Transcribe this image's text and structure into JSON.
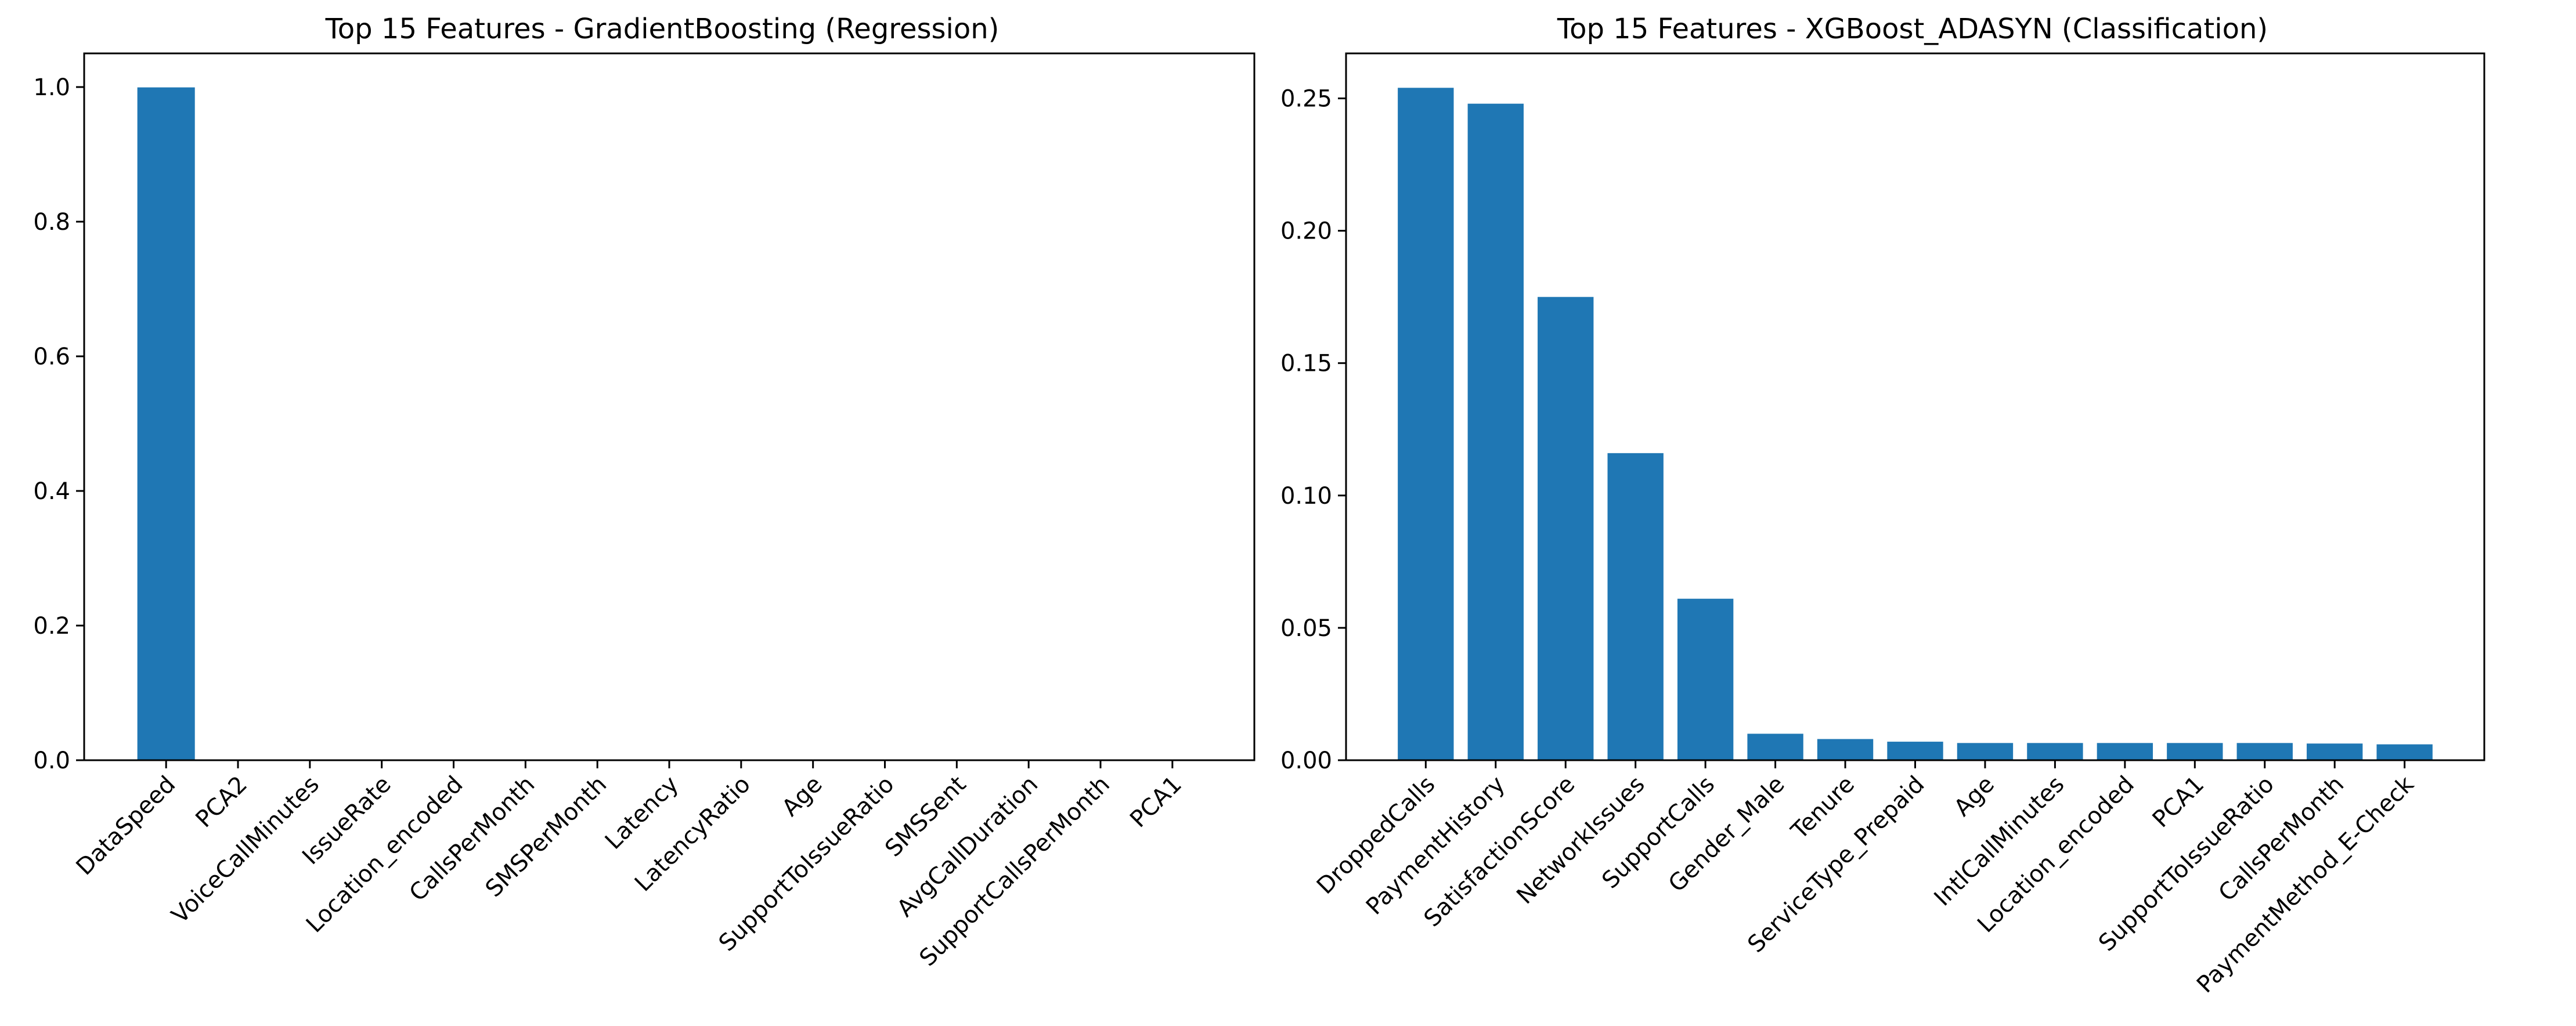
{
  "chart_data": [
    {
      "type": "bar",
      "title": "Top 15 Features - GradientBoosting (Regression)",
      "xlabel": "",
      "ylabel": "",
      "categories": [
        "DataSpeed",
        "PCA2",
        "VoiceCallMinutes",
        "IssueRate",
        "Location_encoded",
        "CallsPerMonth",
        "SMSPerMonth",
        "Latency",
        "LatencyRatio",
        "Age",
        "SupportToIssueRatio",
        "SMSSent",
        "AvgCallDuration",
        "SupportCallsPerMonth",
        "PCA1"
      ],
      "values": [
        0.9995,
        0.0001,
        0.0001,
        0.0001,
        0.0001,
        0.0,
        0.0,
        0.0,
        0.0,
        0.0,
        0.0,
        0.0,
        0.0,
        0.0,
        0.0
      ],
      "ylim": [
        0,
        1.05
      ],
      "yticks": [
        "0.0",
        "0.2",
        "0.4",
        "0.6",
        "0.8",
        "1.0"
      ],
      "grid": false,
      "bar_color": "#1f77b4"
    },
    {
      "type": "bar",
      "title": "Top 15 Features - XGBoost_ADASYN (Classification)",
      "xlabel": "",
      "ylabel": "",
      "categories": [
        "DroppedCalls",
        "PaymentHistory",
        "SatisfactionScore",
        "NetworkIssues",
        "SupportCalls",
        "Gender_Male",
        "Tenure",
        "ServiceType_Prepaid",
        "Age",
        "IntlCallMinutes",
        "Location_encoded",
        "PCA1",
        "SupportToIssueRatio",
        "CallsPerMonth",
        "PaymentMethod_E-Check"
      ],
      "values": [
        0.254,
        0.248,
        0.175,
        0.116,
        0.061,
        0.01,
        0.008,
        0.007,
        0.0065,
        0.0065,
        0.0065,
        0.0065,
        0.0065,
        0.0063,
        0.006
      ],
      "ylim": [
        0,
        0.267
      ],
      "yticks": [
        "0.00",
        "0.05",
        "0.10",
        "0.15",
        "0.20",
        "0.25"
      ],
      "grid": false,
      "bar_color": "#1f77b4"
    }
  ]
}
